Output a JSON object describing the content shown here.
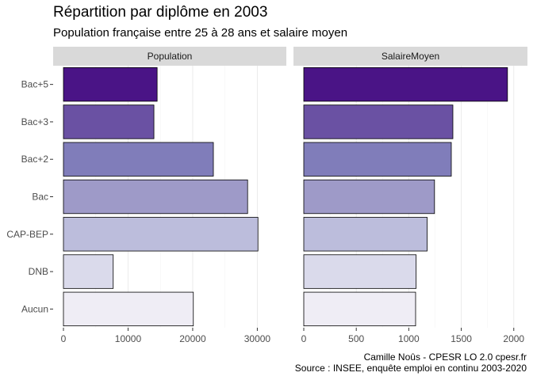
{
  "title": "Répartition par diplôme en 2003",
  "subtitle": "Population française entre 25 à 28 ans et salaire moyen",
  "caption_line1": "Camille Noûs - CPESR LO 2.0 cpesr.fr",
  "caption_line2": "Source : INSEE, enquête emploi en continu 2003-2020",
  "colors": {
    "Bac+5": "#4a1486",
    "Bac+3": "#6a51a3",
    "Bac+2": "#807dba",
    "Bac": "#9e9ac8",
    "CAP-BEP": "#bcbddc",
    "DNB": "#dadaeb",
    "Aucun": "#efedf5"
  },
  "chart_data": [
    {
      "type": "bar",
      "orientation": "horizontal",
      "panel": "Population",
      "categories": [
        "Bac+5",
        "Bac+3",
        "Bac+2",
        "Bac",
        "CAP-BEP",
        "DNB",
        "Aucun"
      ],
      "values": [
        14500,
        14000,
        23200,
        28500,
        30100,
        7700,
        20100
      ],
      "xlim": [
        0,
        34000
      ],
      "xticks": [
        0,
        10000,
        20000,
        30000
      ],
      "grid": true
    },
    {
      "type": "bar",
      "orientation": "horizontal",
      "panel": "SalaireMoyen",
      "categories": [
        "Bac+5",
        "Bac+3",
        "Bac+2",
        "Bac",
        "CAP-BEP",
        "DNB",
        "Aucun"
      ],
      "values": [
        1940,
        1420,
        1405,
        1245,
        1175,
        1070,
        1065
      ],
      "xlim": [
        0,
        2100
      ],
      "xticks": [
        0,
        500,
        1000,
        1500,
        2000
      ],
      "grid": true
    }
  ]
}
